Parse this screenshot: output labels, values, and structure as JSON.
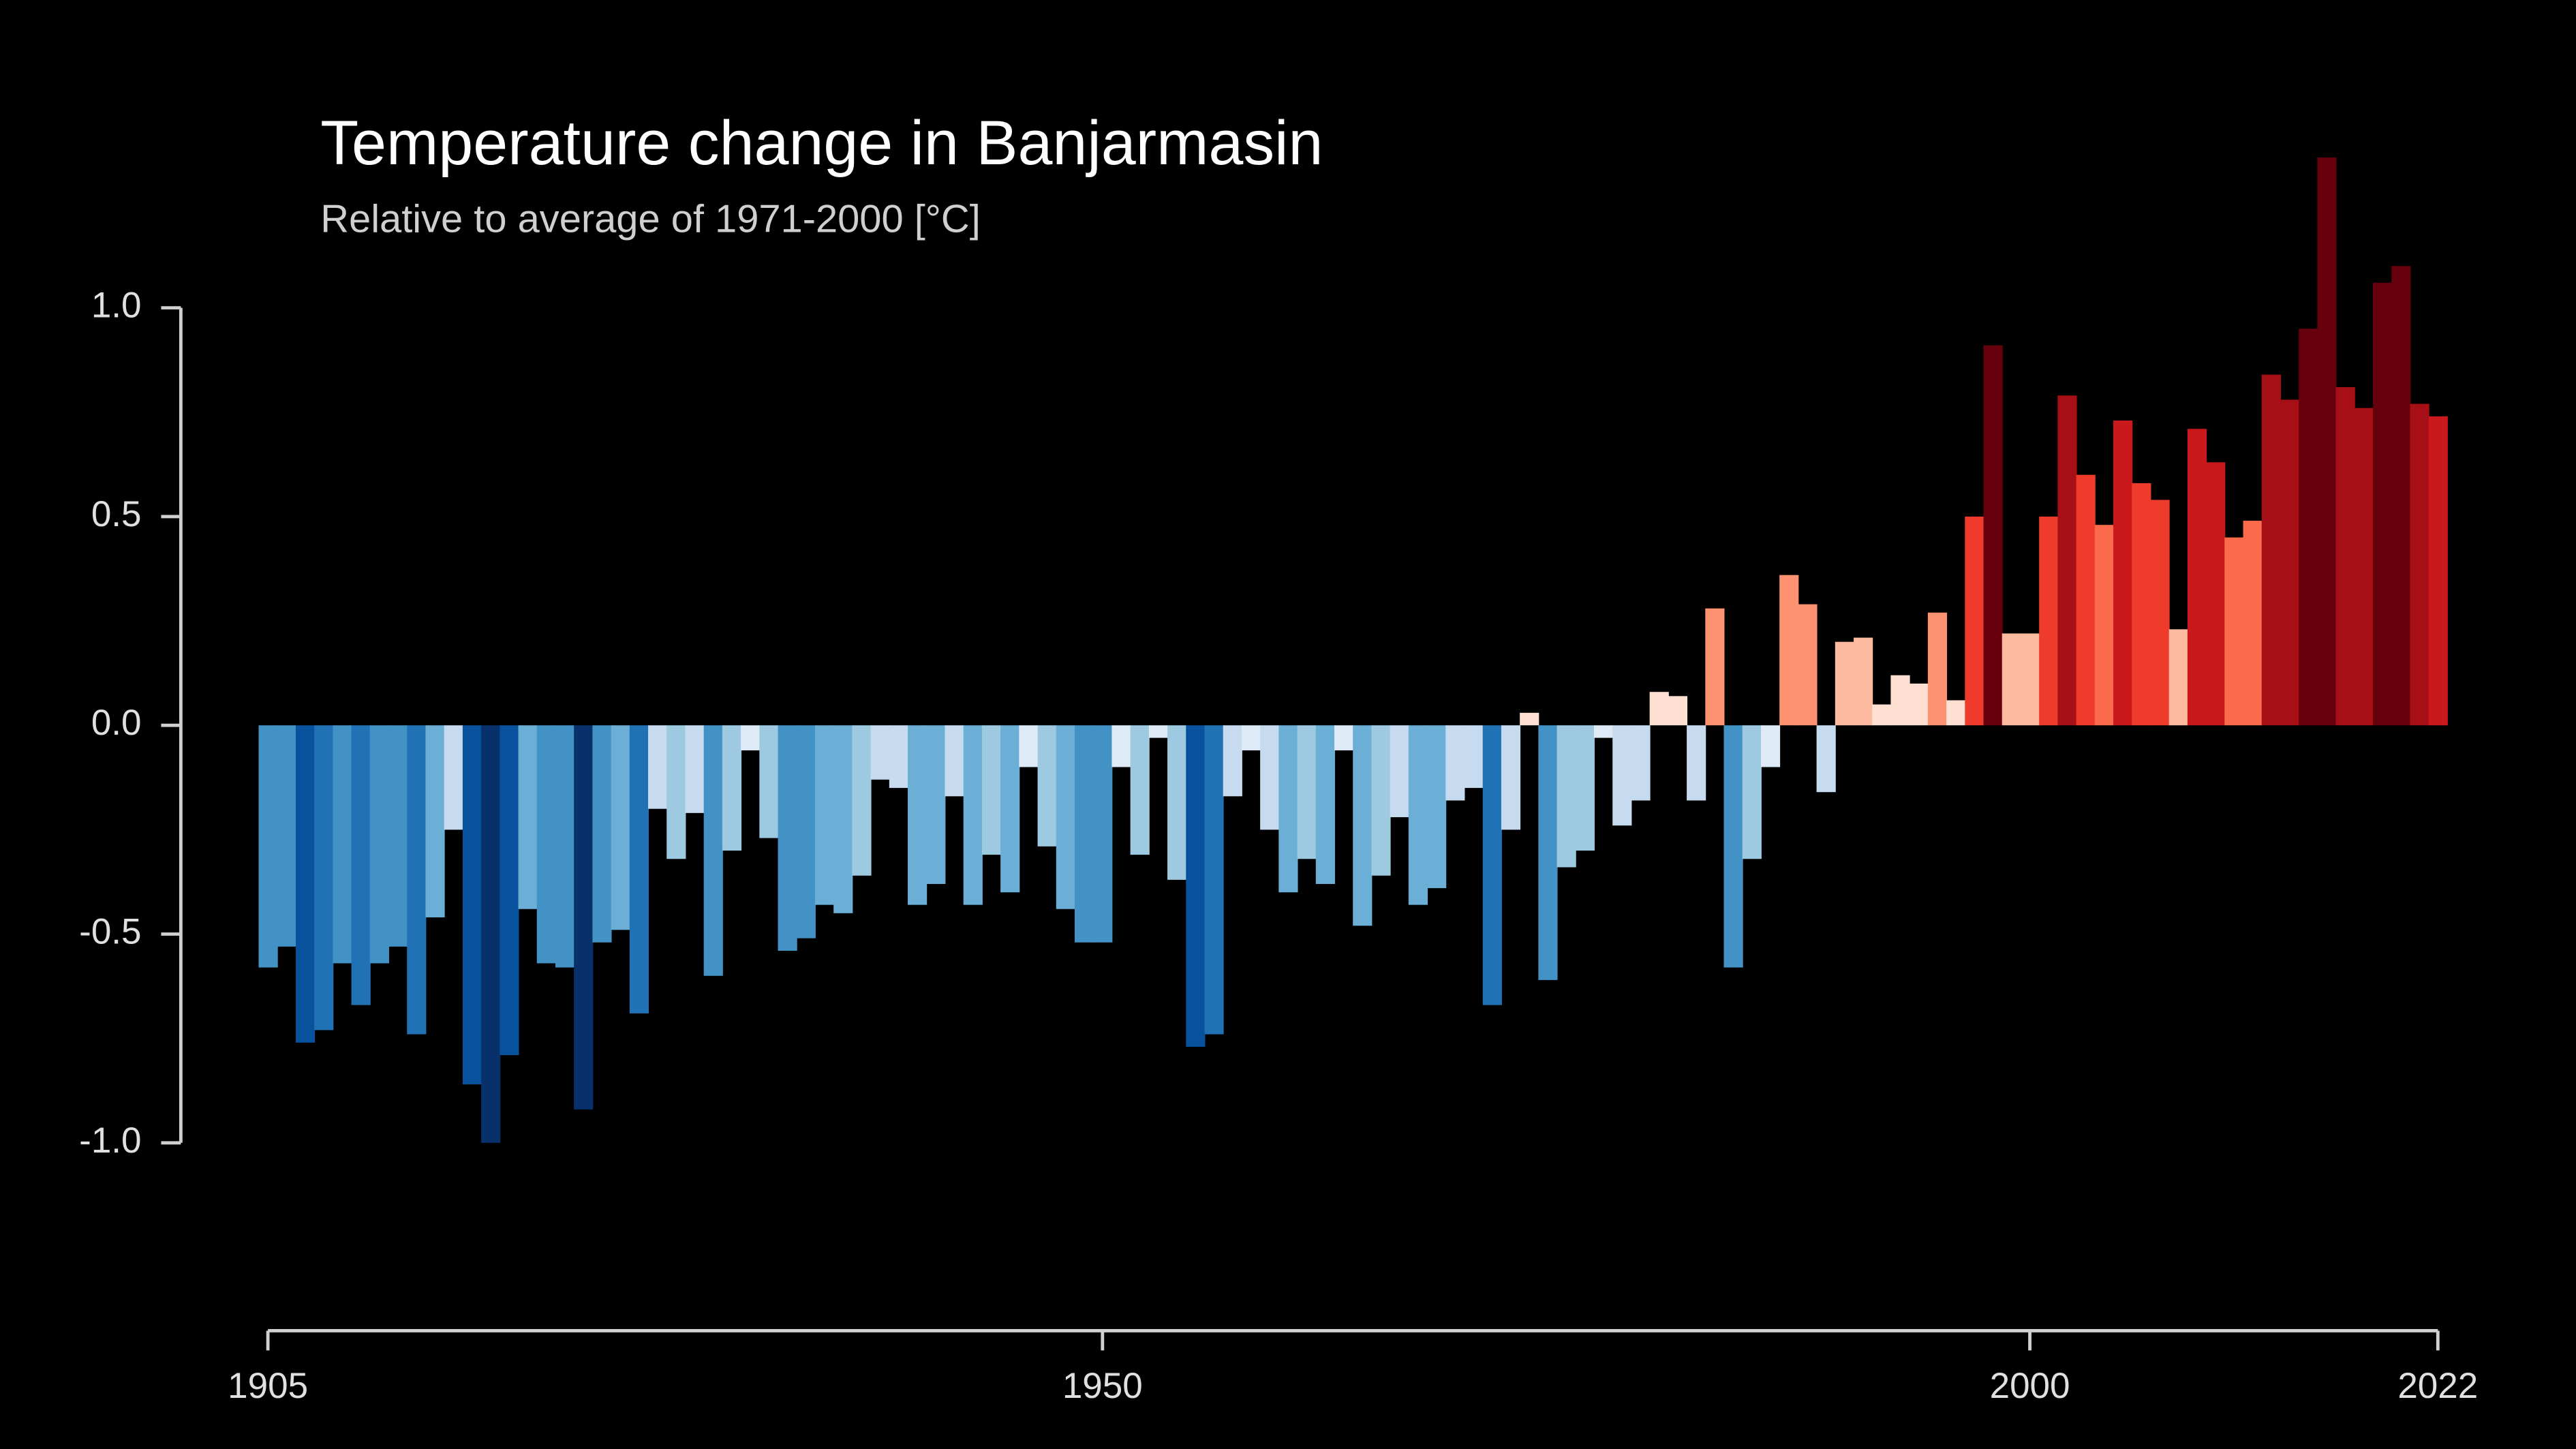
{
  "chart_data": {
    "type": "bar",
    "title": "Temperature change in Banjarmasin",
    "subtitle": "Relative to average of 1971-2000  [°C]",
    "x": [
      1905,
      1906,
      1907,
      1908,
      1909,
      1910,
      1911,
      1912,
      1913,
      1914,
      1915,
      1916,
      1917,
      1918,
      1919,
      1920,
      1921,
      1922,
      1923,
      1924,
      1925,
      1926,
      1927,
      1928,
      1929,
      1930,
      1931,
      1932,
      1933,
      1934,
      1935,
      1936,
      1937,
      1938,
      1939,
      1940,
      1941,
      1942,
      1943,
      1944,
      1945,
      1946,
      1947,
      1948,
      1949,
      1950,
      1951,
      1952,
      1953,
      1954,
      1955,
      1956,
      1957,
      1958,
      1959,
      1960,
      1961,
      1962,
      1963,
      1964,
      1965,
      1966,
      1967,
      1968,
      1969,
      1970,
      1971,
      1972,
      1973,
      1974,
      1975,
      1976,
      1977,
      1978,
      1979,
      1980,
      1981,
      1982,
      1983,
      1984,
      1985,
      1986,
      1987,
      1988,
      1989,
      1990,
      1991,
      1992,
      1993,
      1994,
      1995,
      1996,
      1997,
      1998,
      1999,
      2000,
      2001,
      2002,
      2003,
      2004,
      2005,
      2006,
      2007,
      2008,
      2009,
      2010,
      2011,
      2012,
      2013,
      2014,
      2015,
      2016,
      2017,
      2018,
      2019,
      2020,
      2021,
      2022
    ],
    "values": [
      -0.58,
      -0.53,
      -0.76,
      -0.73,
      -0.57,
      -0.67,
      -0.57,
      -0.53,
      -0.74,
      -0.46,
      -0.25,
      -0.86,
      -1.0,
      -0.79,
      -0.44,
      -0.57,
      -0.58,
      -0.92,
      -0.52,
      -0.49,
      -0.69,
      -0.2,
      -0.32,
      -0.21,
      -0.6,
      -0.3,
      -0.06,
      -0.27,
      -0.54,
      -0.51,
      -0.43,
      -0.45,
      -0.36,
      -0.13,
      -0.15,
      -0.43,
      -0.38,
      -0.17,
      -0.43,
      -0.31,
      -0.4,
      -0.1,
      -0.29,
      -0.44,
      -0.52,
      -0.52,
      -0.1,
      -0.31,
      -0.03,
      -0.37,
      -0.77,
      -0.74,
      -0.17,
      -0.06,
      -0.25,
      -0.4,
      -0.32,
      -0.38,
      -0.06,
      -0.48,
      -0.36,
      -0.22,
      -0.43,
      -0.39,
      -0.18,
      -0.15,
      -0.67,
      -0.25,
      0.03,
      -0.61,
      -0.34,
      -0.3,
      -0.03,
      -0.24,
      -0.18,
      0.08,
      0.07,
      -0.18,
      0.28,
      -0.58,
      -0.32,
      -0.1,
      0.36,
      0.29,
      -0.16,
      0.2,
      0.21,
      0.05,
      0.12,
      0.1,
      0.27,
      0.06,
      0.5,
      0.91,
      0.22,
      0.22,
      0.5,
      0.79,
      0.6,
      0.48,
      0.73,
      0.58,
      0.54,
      0.23,
      0.71,
      0.63,
      0.45,
      0.49,
      0.84,
      0.78,
      0.95,
      1.36,
      0.81,
      0.76,
      1.06,
      1.1,
      0.77,
      0.74
    ],
    "colormap": [
      "#08306b",
      "#08519c",
      "#2171b5",
      "#4292c6",
      "#6baed6",
      "#9ecae1",
      "#c6dbef",
      "#deebf7",
      "#fee0d2",
      "#fcbba1",
      "#fc9272",
      "#fb6a4a",
      "#ef3b2c",
      "#cb181d",
      "#a50f15",
      "#67000d"
    ],
    "color_range": [
      -1,
      1
    ],
    "xlim": [
      1905,
      2022
    ],
    "xticks": [
      1905,
      1950,
      2000,
      2022
    ],
    "ylim": [
      -1.45,
      1.45
    ],
    "yticks": [
      {
        "value": -1,
        "label": "-1.0"
      },
      {
        "value": -0.5,
        "label": "-0.5"
      },
      {
        "value": 0,
        "label": "0.0"
      },
      {
        "value": 0.5,
        "label": "0.5"
      },
      {
        "value": 1,
        "label": "1.0"
      }
    ]
  }
}
